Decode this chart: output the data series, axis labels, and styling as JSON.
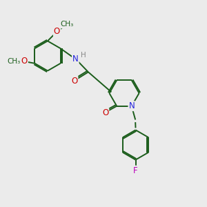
{
  "bg_color": "#ebebeb",
  "bond_color": "#1a5c1a",
  "N_color": "#2222dd",
  "O_color": "#cc0000",
  "F_color": "#bb00bb",
  "H_color": "#888888",
  "line_width": 1.4,
  "font_size": 8.5,
  "fig_size": [
    3.0,
    3.0
  ],
  "dpi": 100,
  "xlim": [
    0,
    10
  ],
  "ylim": [
    0,
    10
  ]
}
